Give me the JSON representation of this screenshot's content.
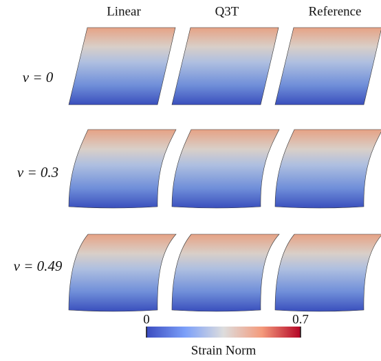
{
  "columns": [
    "Linear",
    "Q3T",
    "Reference"
  ],
  "rows": [
    "ν = 0",
    "ν = 0.3",
    "ν = 0.49"
  ],
  "colorbar": {
    "label": "Strain Norm",
    "min": 0,
    "max": 0.7
  }
}
